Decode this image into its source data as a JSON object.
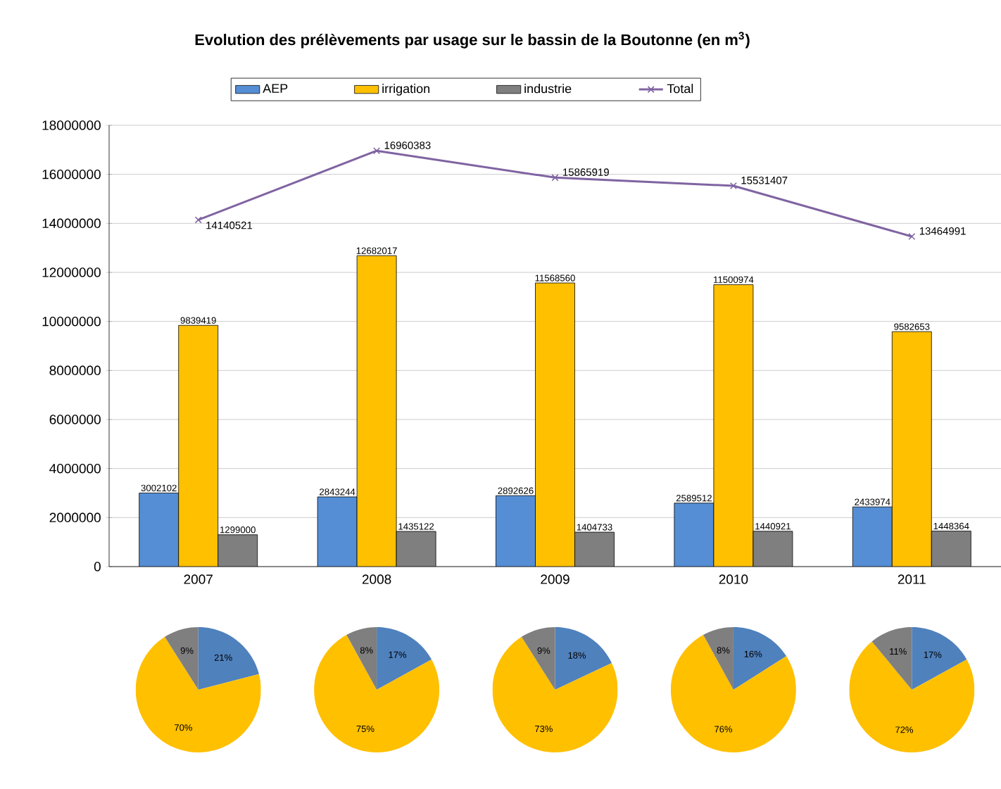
{
  "chart_data": [
    {
      "type": "bar",
      "title": "Evolution des prélèvements par usage sur le bassin de la Boutonne (en m$^{3}$)",
      "categories": [
        "2007",
        "2008",
        "2009",
        "2010",
        "2011"
      ],
      "series": [
        {
          "name": "AEP",
          "color": "#558ed5",
          "values": [
            3002102,
            2843244,
            2892626,
            2589512,
            2433974
          ]
        },
        {
          "name": "irrigation",
          "color": "#ffc000",
          "values": [
            9839419,
            12682017,
            11568560,
            11500974,
            9582653
          ]
        },
        {
          "name": "industrie",
          "color": "#7f7f7f",
          "values": [
            1299000,
            1435122,
            1404733,
            1440921,
            1448364
          ]
        },
        {
          "name": "Total",
          "type": "line",
          "marker": "cross",
          "color": "#8064a2",
          "values": [
            14140521,
            16960383,
            15865919,
            15531407,
            13464991
          ]
        }
      ],
      "ylim": [
        0,
        18000000
      ],
      "yticks": [
        0,
        2000000,
        4000000,
        6000000,
        8000000,
        10000000,
        12000000,
        14000000,
        16000000,
        18000000
      ],
      "grid": "y",
      "legend": "top",
      "data_labels": true
    },
    {
      "type": "pie",
      "categories": [
        null,
        null,
        null
      ],
      "values": [
        21,
        70,
        9
      ],
      "value_labels": [
        "21%",
        "70%",
        "9%"
      ],
      "colors": [
        "#4f81bd",
        "#ffc000",
        "#7f7f7f"
      ]
    },
    {
      "type": "pie",
      "categories": [
        null,
        null,
        null
      ],
      "values": [
        17,
        75,
        8
      ],
      "value_labels": [
        "17%",
        "75%",
        "8%"
      ],
      "colors": [
        "#4f81bd",
        "#ffc000",
        "#7f7f7f"
      ]
    },
    {
      "type": "pie",
      "categories": [
        null,
        null,
        null
      ],
      "values": [
        18,
        73,
        9
      ],
      "value_labels": [
        "18%",
        "73%",
        "9%"
      ],
      "colors": [
        "#4f81bd",
        "#ffc000",
        "#7f7f7f"
      ]
    },
    {
      "type": "pie",
      "categories": [
        null,
        null,
        null
      ],
      "values": [
        16,
        76,
        8
      ],
      "value_labels": [
        "16%",
        "76%",
        "8%"
      ],
      "colors": [
        "#4f81bd",
        "#ffc000",
        "#7f7f7f"
      ]
    },
    {
      "type": "pie",
      "categories": [
        null,
        null,
        null
      ],
      "values": [
        17,
        72,
        11
      ],
      "value_labels": [
        "17%",
        "72%",
        "11%"
      ],
      "colors": [
        "#4f81bd",
        "#ffc000",
        "#7f7f7f"
      ]
    }
  ]
}
